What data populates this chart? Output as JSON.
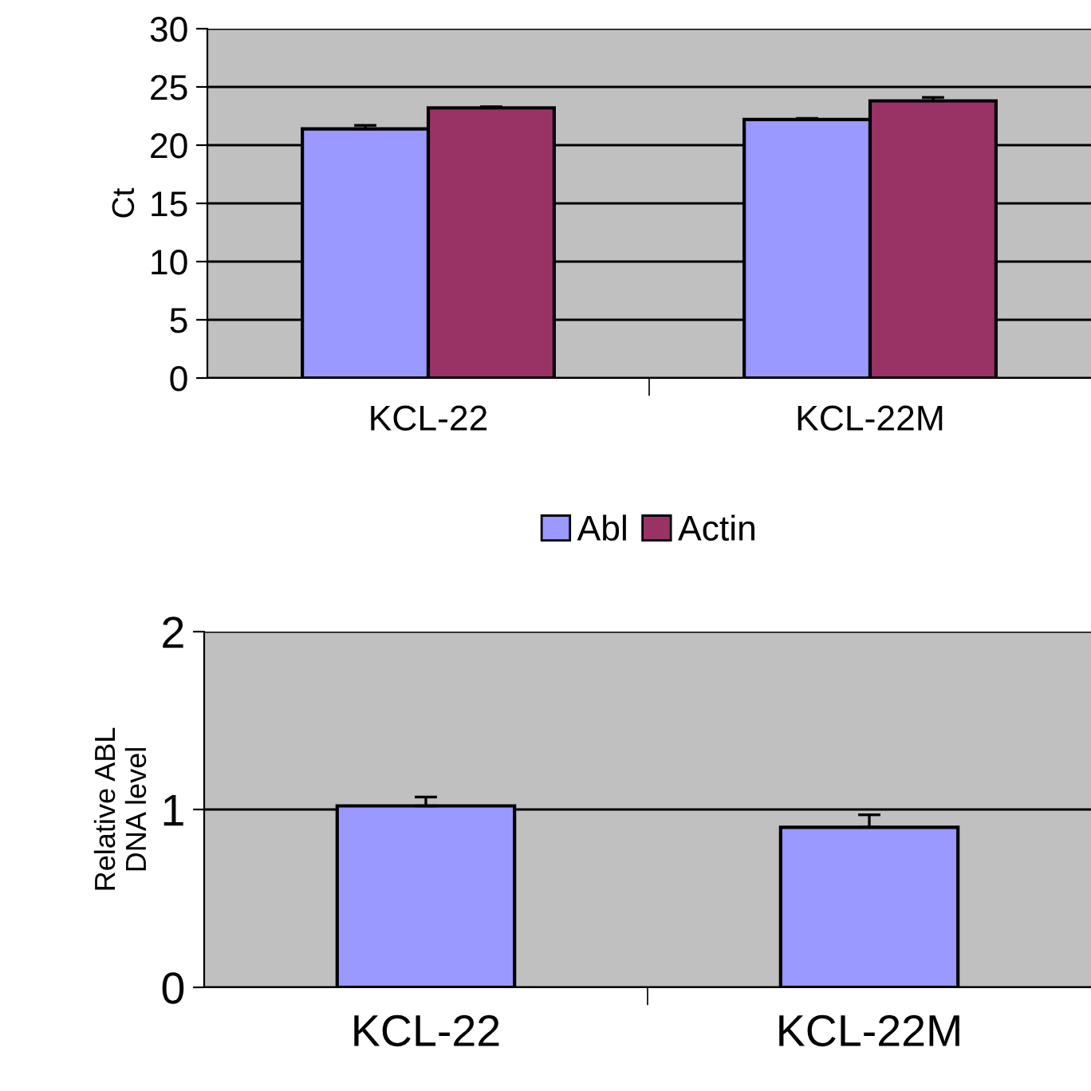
{
  "chart_data": [
    {
      "type": "bar",
      "ylabel": "Ct",
      "categories": [
        "KCL-22",
        "KCL-22M"
      ],
      "series": [
        {
          "name": "Abl",
          "color": "#9999ff",
          "values": [
            21.4,
            22.2
          ],
          "errors": [
            [
              21.4,
              21.7
            ],
            [
              22.2,
              22.3
            ]
          ]
        },
        {
          "name": "Actin",
          "color": "#993366",
          "values": [
            23.2,
            23.8
          ],
          "errors": [
            [
              23.2,
              23.3
            ],
            [
              23.8,
              24.1
            ]
          ]
        }
      ],
      "ylim": [
        0,
        30
      ],
      "yticks": [
        0,
        5,
        10,
        15,
        20,
        25,
        30
      ],
      "grid": "y",
      "legend": "bottom"
    },
    {
      "type": "bar",
      "ylabel": "Relative ABL\nDNA level",
      "categories": [
        "KCL-22",
        "KCL-22M"
      ],
      "series": [
        {
          "color": "#9999ff",
          "values": [
            1.02,
            0.9
          ],
          "errors": [
            [
              1.02,
              1.07
            ],
            [
              0.9,
              0.97
            ]
          ]
        }
      ],
      "ylim": [
        0,
        2
      ],
      "yticks": [
        0,
        1,
        2
      ],
      "grid": "y"
    }
  ]
}
